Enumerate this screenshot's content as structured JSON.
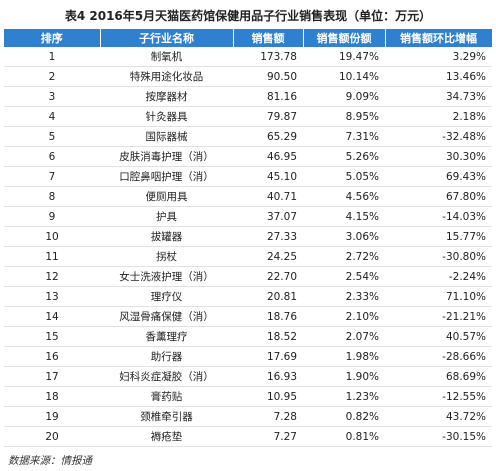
{
  "title": "表4  2016年5月天猫医药馆保健用品子行业销售表现（单位：万元）",
  "table": {
    "columns": [
      "排序",
      "子行业名称",
      "销售额",
      "销售额份额",
      "销售额环比增幅"
    ],
    "rows": [
      [
        "1",
        "制氧机",
        "173.78",
        "19.47%",
        "3.29%"
      ],
      [
        "2",
        "特殊用途化妆品",
        "90.50",
        "10.14%",
        "13.46%"
      ],
      [
        "3",
        "按摩器材",
        "81.16",
        "9.09%",
        "34.73%"
      ],
      [
        "4",
        "针灸器具",
        "79.87",
        "8.95%",
        "2.18%"
      ],
      [
        "5",
        "国际器械",
        "65.29",
        "7.31%",
        "-32.48%"
      ],
      [
        "6",
        "皮肤消毒护理（消）",
        "46.95",
        "5.26%",
        "30.30%"
      ],
      [
        "7",
        "口腔鼻咽护理（消）",
        "45.10",
        "5.05%",
        "69.43%"
      ],
      [
        "8",
        "便厕用具",
        "40.71",
        "4.56%",
        "67.80%"
      ],
      [
        "9",
        "护具",
        "37.07",
        "4.15%",
        "-14.03%"
      ],
      [
        "10",
        "拔罐器",
        "27.33",
        "3.06%",
        "15.77%"
      ],
      [
        "11",
        "拐杖",
        "24.25",
        "2.72%",
        "-30.80%"
      ],
      [
        "12",
        "女士洗液护理（消）",
        "22.70",
        "2.54%",
        "-2.24%"
      ],
      [
        "13",
        "理疗仪",
        "20.81",
        "2.33%",
        "71.10%"
      ],
      [
        "14",
        "风湿骨痛保健（消）",
        "18.76",
        "2.10%",
        "-21.21%"
      ],
      [
        "15",
        "香薰理疗",
        "18.52",
        "2.07%",
        "40.57%"
      ],
      [
        "16",
        "助行器",
        "17.69",
        "1.98%",
        "-28.66%"
      ],
      [
        "17",
        "妇科炎症凝胶（消）",
        "16.93",
        "1.90%",
        "68.69%"
      ],
      [
        "18",
        "膏药贴",
        "10.95",
        "1.23%",
        "-12.55%"
      ],
      [
        "19",
        "颈椎牵引器",
        "7.28",
        "0.82%",
        "43.72%"
      ],
      [
        "20",
        "褥疮垫",
        "7.27",
        "0.81%",
        "-30.15%"
      ]
    ]
  },
  "source": "数据来源：情报通"
}
